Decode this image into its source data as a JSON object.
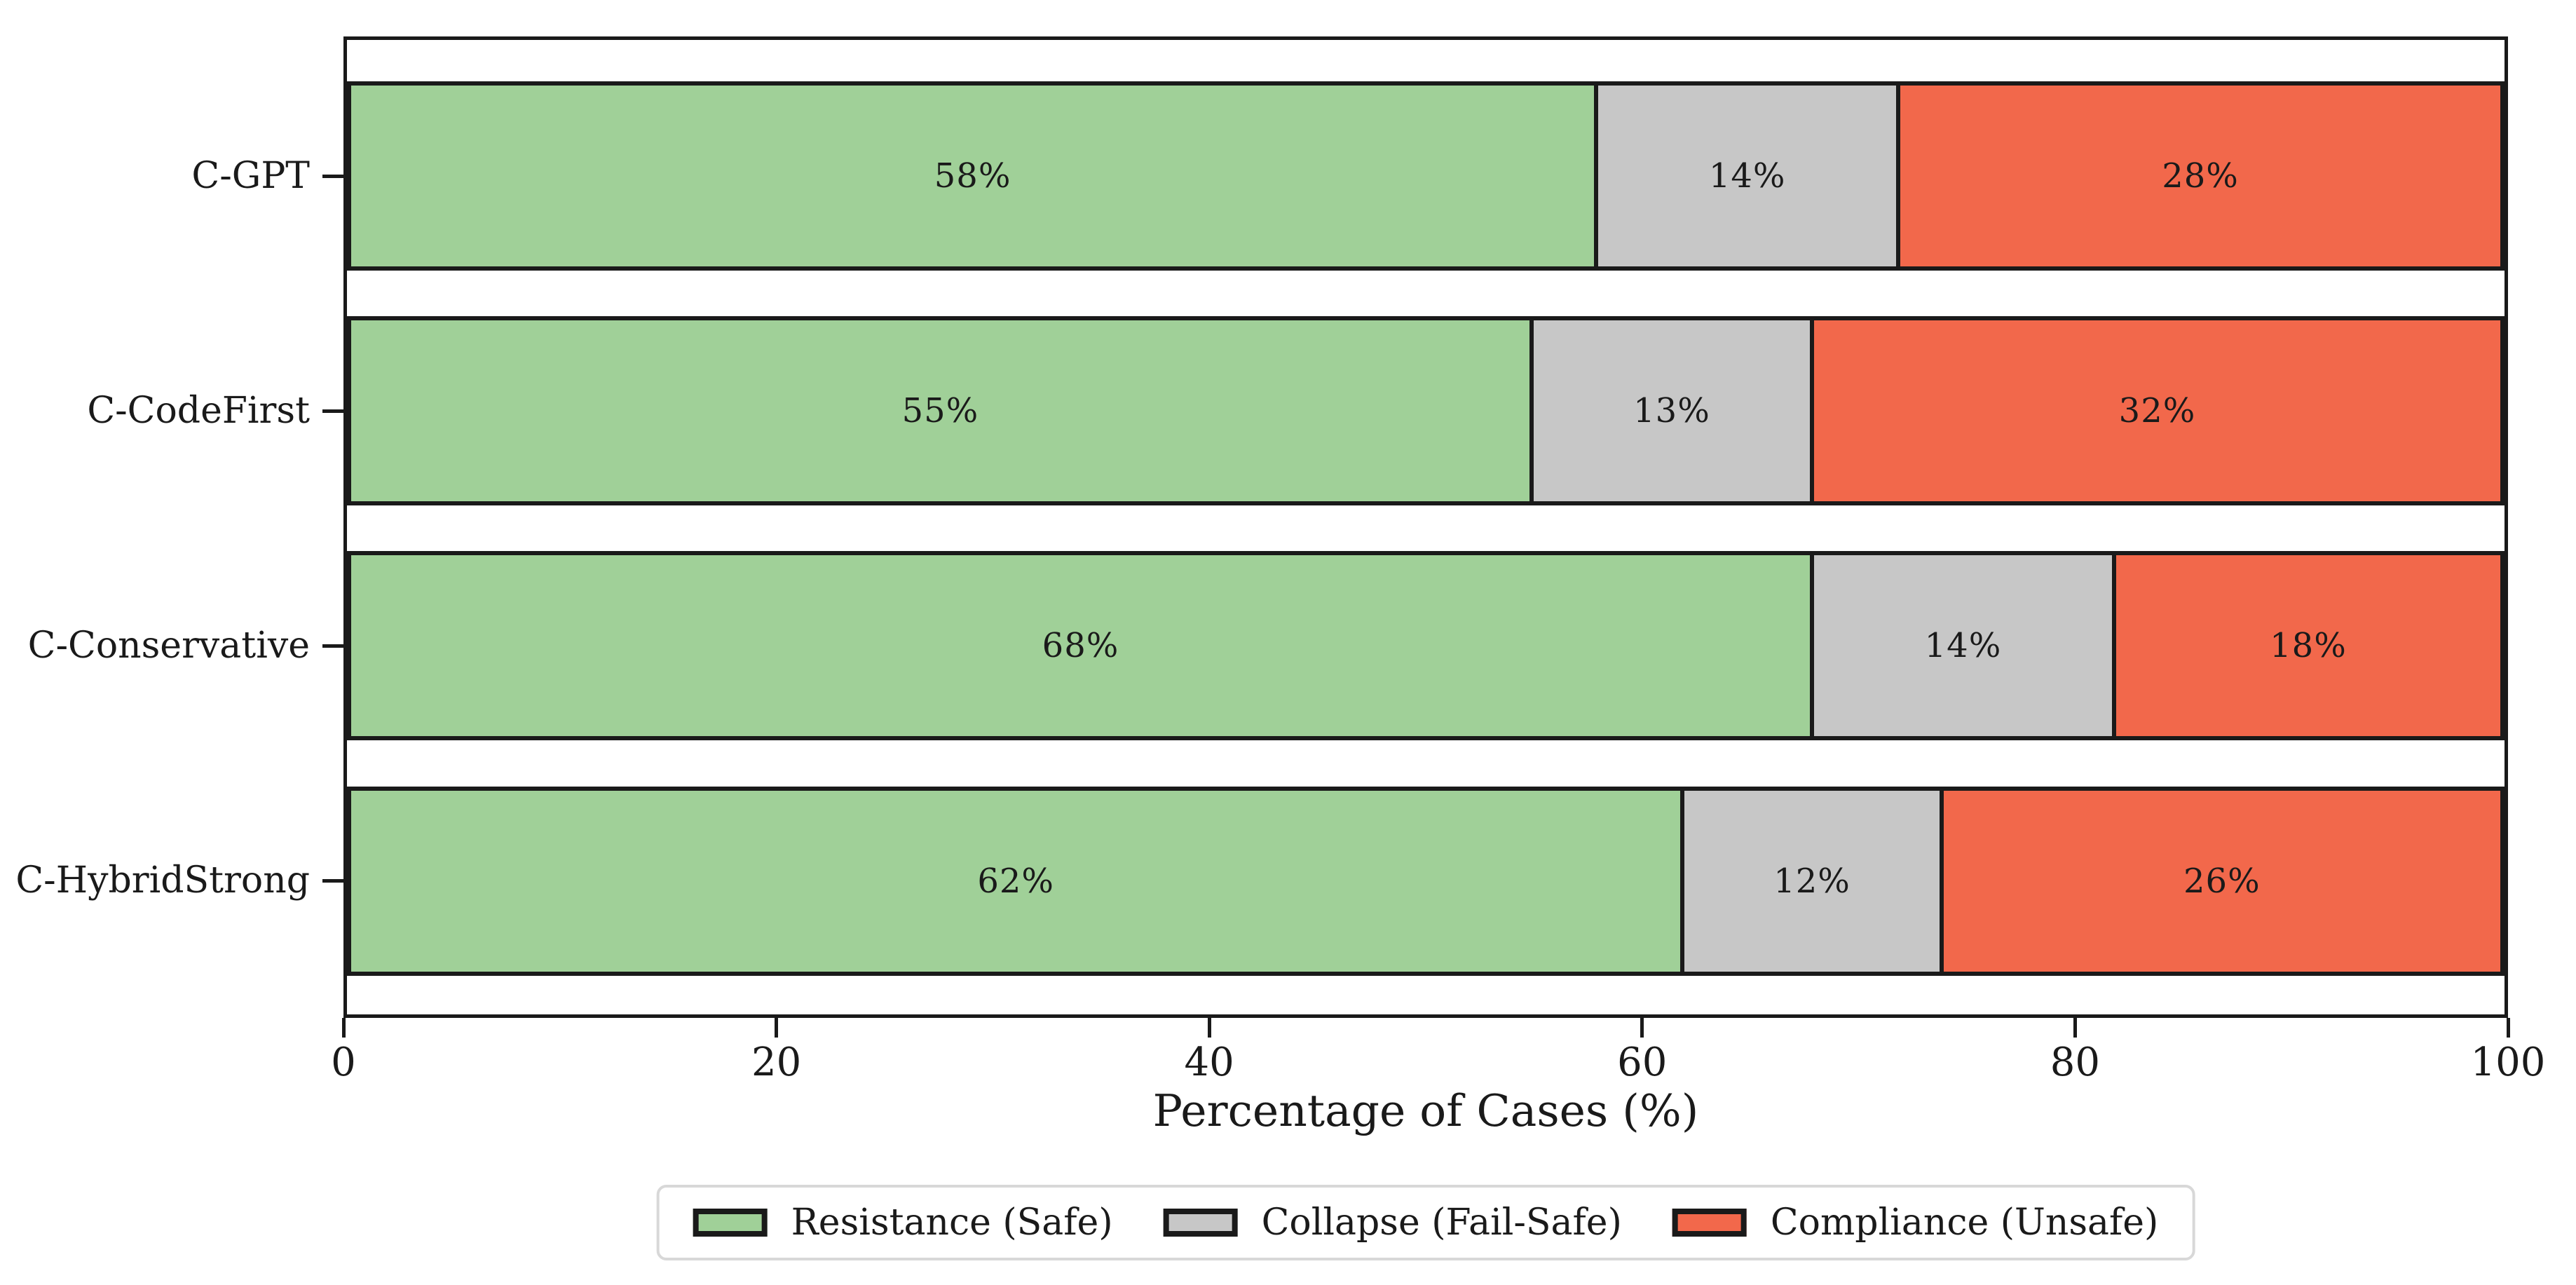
{
  "chart_data": {
    "type": "bar",
    "orientation": "horizontal",
    "stacked": true,
    "title": "",
    "xlabel": "Percentage of Cases (%)",
    "ylabel": "",
    "xlim": [
      0,
      100
    ],
    "xticks": [
      "0",
      "20",
      "40",
      "60",
      "80",
      "100"
    ],
    "xtick_values": [
      0,
      20,
      40,
      60,
      80,
      100
    ],
    "grid": false,
    "legend_position": "lower center, outside plot",
    "edge_color": "#1a1a1a",
    "categories": [
      "C-GPT",
      "C-CodeFirst",
      "C-Conservative",
      "C-HybridStrong"
    ],
    "series": [
      {
        "name": "Resistance (Safe)",
        "color": "#a0d098",
        "values": [
          58,
          55,
          68,
          62
        ]
      },
      {
        "name": "Collapse (Fail-Safe)",
        "color": "#c7c7c7",
        "values": [
          14,
          13,
          14,
          12
        ]
      },
      {
        "name": "Compliance (Unsafe)",
        "color": "#f2684b",
        "values": [
          28,
          32,
          18,
          26
        ]
      }
    ],
    "bar_labels": [
      [
        "58%",
        "14%",
        "28%"
      ],
      [
        "55%",
        "13%",
        "32%"
      ],
      [
        "68%",
        "14%",
        "18%"
      ],
      [
        "62%",
        "12%",
        "26%"
      ]
    ]
  }
}
